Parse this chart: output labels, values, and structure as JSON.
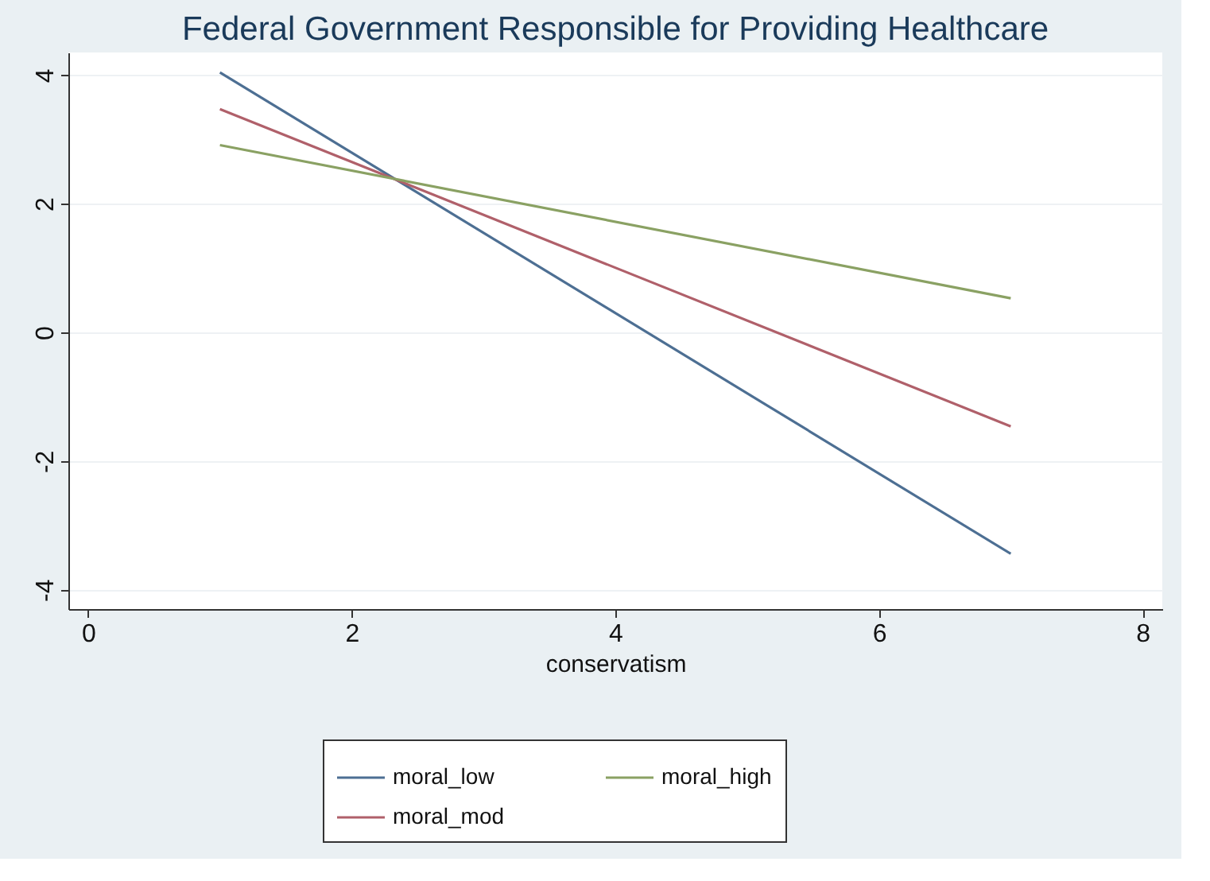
{
  "chart_data": {
    "type": "line",
    "title": "Federal Government Responsible for Providing Healthcare",
    "xlabel": "conservatism",
    "x": [
      1,
      7
    ],
    "series": [
      {
        "name": "moral_low",
        "color": "#4d6f93",
        "values": [
          4.04,
          -3.44
        ]
      },
      {
        "name": "moral_mod",
        "color": "#b0606a",
        "values": [
          3.47,
          -1.46
        ]
      },
      {
        "name": "moral_high",
        "color": "#8aa163",
        "values": [
          2.91,
          0.53
        ]
      }
    ],
    "xlim": [
      -0.15,
      8.15
    ],
    "xticks": [
      0,
      2,
      4,
      6,
      8
    ],
    "ylim": [
      -4.3,
      4.35
    ],
    "yticks": [
      -4,
      -2,
      0,
      2,
      4
    ],
    "grid": "y",
    "legend": "bottom",
    "marker": "none",
    "line_style": "solid"
  }
}
